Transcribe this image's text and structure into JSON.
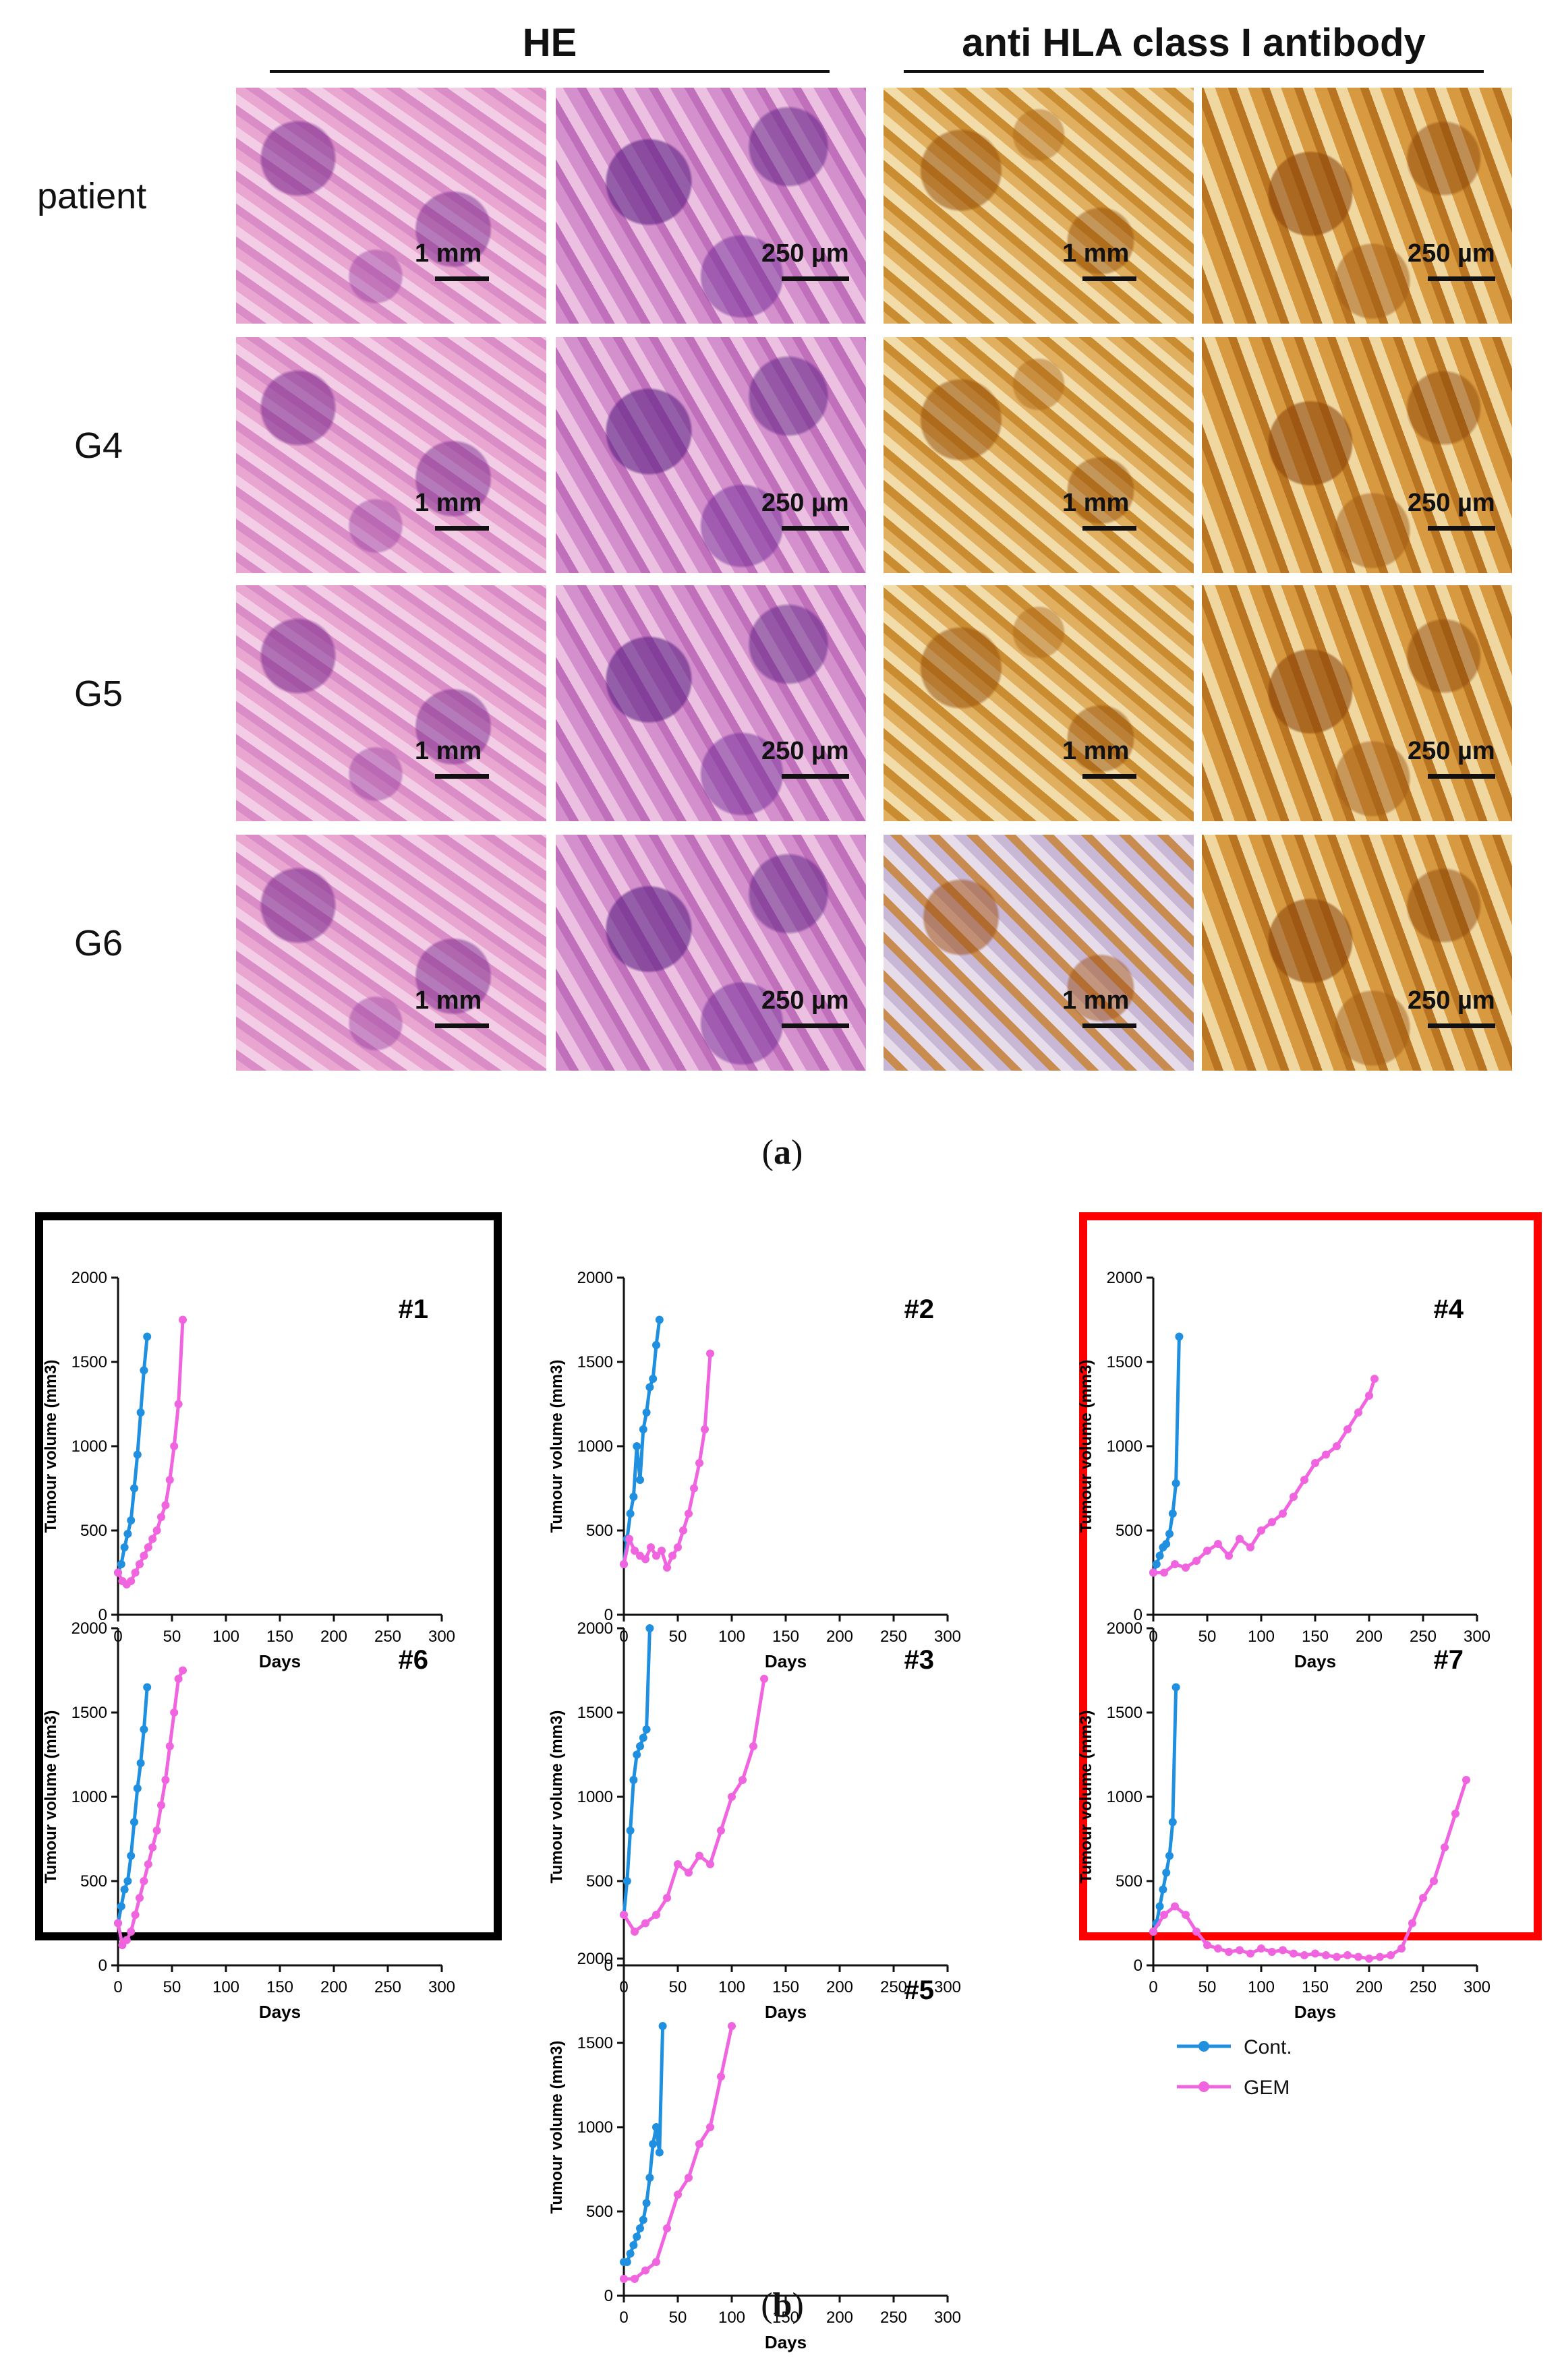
{
  "panel_a": {
    "headers": {
      "he": "HE",
      "hla": "anti HLA class I antibody"
    },
    "rows": [
      {
        "label": "patient",
        "scales": [
          "1 mm",
          "250 µm",
          "1 mm",
          "250 µm"
        ]
      },
      {
        "label": "G4",
        "scales": [
          "1 mm",
          "250 µm",
          "1 mm",
          "250 µm"
        ]
      },
      {
        "label": "G5",
        "scales": [
          "1 mm",
          "250 µm",
          "1 mm",
          "250 µm"
        ]
      },
      {
        "label": "G6",
        "scales": [
          "1 mm",
          "250 µm",
          "1 mm",
          "250 µm"
        ]
      }
    ],
    "caption": {
      "open": "(",
      "letter": "a",
      "close": ")"
    }
  },
  "panel_b": {
    "caption": {
      "open": "(",
      "letter": "b",
      "close": ")"
    },
    "frame_colors": {
      "left": "#000000",
      "right": "#ff0000"
    }
  },
  "legend": [
    {
      "name": "Cont.",
      "color": "#1f8fe0"
    },
    {
      "name": "GEM",
      "color": "#f064e0"
    }
  ],
  "chart_data": [
    {
      "type": "line",
      "id": "#1",
      "xlabel": "Days",
      "ylabel": "Tumour volume (mm3)",
      "xlim": [
        0,
        300
      ],
      "ylim": [
        0,
        2000
      ],
      "xticks": [
        0,
        50,
        100,
        150,
        200,
        250,
        300
      ],
      "yticks": [
        0,
        500,
        1000,
        1500,
        2000
      ],
      "series": [
        {
          "name": "Cont.",
          "x": [
            0,
            3,
            6,
            9,
            12,
            15,
            18,
            21,
            24,
            27
          ],
          "y": [
            250,
            300,
            400,
            480,
            560,
            750,
            950,
            1200,
            1450,
            1650
          ]
        },
        {
          "name": "GEM",
          "x": [
            0,
            4,
            8,
            12,
            16,
            20,
            24,
            28,
            32,
            36,
            40,
            44,
            48,
            52,
            56,
            60
          ],
          "y": [
            250,
            200,
            180,
            200,
            250,
            300,
            350,
            400,
            450,
            500,
            580,
            650,
            800,
            1000,
            1250,
            1750
          ]
        }
      ]
    },
    {
      "type": "line",
      "id": "#2",
      "xlabel": "Days",
      "ylabel": "Tumour volume (mm3)",
      "xlim": [
        0,
        300
      ],
      "ylim": [
        0,
        2000
      ],
      "xticks": [
        0,
        50,
        100,
        150,
        200,
        250,
        300
      ],
      "yticks": [
        0,
        500,
        1000,
        1500,
        2000
      ],
      "series": [
        {
          "name": "Cont.",
          "x": [
            0,
            3,
            6,
            9,
            12,
            15,
            18,
            21,
            24,
            27,
            30,
            33
          ],
          "y": [
            300,
            450,
            600,
            700,
            1000,
            800,
            1100,
            1200,
            1350,
            1400,
            1600,
            1750
          ]
        },
        {
          "name": "GEM",
          "x": [
            0,
            5,
            10,
            15,
            20,
            25,
            30,
            35,
            40,
            45,
            50,
            55,
            60,
            65,
            70,
            75,
            80
          ],
          "y": [
            300,
            450,
            380,
            350,
            330,
            400,
            350,
            380,
            280,
            350,
            400,
            500,
            600,
            750,
            900,
            1100,
            1550
          ]
        }
      ]
    },
    {
      "type": "line",
      "id": "#4",
      "xlabel": "Days",
      "ylabel": "Tumour volume (mm3)",
      "xlim": [
        0,
        300
      ],
      "ylim": [
        0,
        2000
      ],
      "xticks": [
        0,
        50,
        100,
        150,
        200,
        250,
        300
      ],
      "yticks": [
        0,
        500,
        1000,
        1500,
        2000
      ],
      "series": [
        {
          "name": "Cont.",
          "x": [
            0,
            3,
            6,
            9,
            12,
            15,
            18,
            21,
            24
          ],
          "y": [
            250,
            300,
            350,
            400,
            420,
            480,
            600,
            780,
            1650
          ]
        },
        {
          "name": "GEM",
          "x": [
            0,
            10,
            20,
            30,
            40,
            50,
            60,
            70,
            80,
            90,
            100,
            110,
            120,
            130,
            140,
            150,
            160,
            170,
            180,
            190,
            200,
            205
          ],
          "y": [
            250,
            250,
            300,
            280,
            320,
            380,
            420,
            350,
            450,
            400,
            500,
            550,
            600,
            700,
            800,
            900,
            950,
            1000,
            1100,
            1200,
            1300,
            1400
          ]
        }
      ]
    },
    {
      "type": "line",
      "id": "#6",
      "xlabel": "Days",
      "ylabel": "Tumour volume (mm3)",
      "xlim": [
        0,
        300
      ],
      "ylim": [
        0,
        2000
      ],
      "xticks": [
        0,
        50,
        100,
        150,
        200,
        250,
        300
      ],
      "yticks": [
        0,
        500,
        1000,
        1500,
        2000
      ],
      "series": [
        {
          "name": "Cont.",
          "x": [
            0,
            3,
            6,
            9,
            12,
            15,
            18,
            21,
            24,
            27
          ],
          "y": [
            250,
            350,
            450,
            500,
            650,
            850,
            1050,
            1200,
            1400,
            1650
          ]
        },
        {
          "name": "GEM",
          "x": [
            0,
            4,
            8,
            12,
            16,
            20,
            24,
            28,
            32,
            36,
            40,
            44,
            48,
            52,
            56,
            60
          ],
          "y": [
            250,
            120,
            150,
            200,
            300,
            400,
            500,
            600,
            700,
            800,
            950,
            1100,
            1300,
            1500,
            1700,
            1750
          ]
        }
      ]
    },
    {
      "type": "line",
      "id": "#3",
      "xlabel": "Days",
      "ylabel": "Tumour volume (mm3)",
      "xlim": [
        0,
        300
      ],
      "ylim": [
        0,
        2000
      ],
      "xticks": [
        0,
        50,
        100,
        150,
        200,
        250,
        300
      ],
      "yticks": [
        0,
        500,
        1000,
        1500,
        2000
      ],
      "series": [
        {
          "name": "Cont.",
          "x": [
            0,
            3,
            6,
            9,
            12,
            15,
            18,
            21,
            24
          ],
          "y": [
            300,
            500,
            800,
            1100,
            1250,
            1300,
            1350,
            1400,
            2000
          ]
        },
        {
          "name": "GEM",
          "x": [
            0,
            10,
            20,
            30,
            40,
            50,
            60,
            70,
            80,
            90,
            100,
            110,
            120,
            130
          ],
          "y": [
            300,
            200,
            250,
            300,
            400,
            600,
            550,
            650,
            600,
            800,
            1000,
            1100,
            1300,
            1700
          ]
        }
      ]
    },
    {
      "type": "line",
      "id": "#7",
      "xlabel": "Days",
      "ylabel": "Tumour volume (mm3)",
      "xlim": [
        0,
        300
      ],
      "ylim": [
        0,
        2000
      ],
      "xticks": [
        0,
        50,
        100,
        150,
        200,
        250,
        300
      ],
      "yticks": [
        0,
        500,
        1000,
        1500,
        2000
      ],
      "series": [
        {
          "name": "Cont.",
          "x": [
            0,
            3,
            6,
            9,
            12,
            15,
            18,
            21
          ],
          "y": [
            200,
            250,
            350,
            450,
            550,
            650,
            850,
            1650
          ]
        },
        {
          "name": "GEM",
          "x": [
            0,
            10,
            20,
            30,
            40,
            50,
            60,
            70,
            80,
            90,
            100,
            110,
            120,
            130,
            140,
            150,
            160,
            170,
            180,
            190,
            200,
            210,
            220,
            230,
            240,
            250,
            260,
            270,
            280,
            290
          ],
          "y": [
            200,
            300,
            350,
            300,
            200,
            120,
            100,
            80,
            90,
            70,
            100,
            80,
            90,
            70,
            60,
            70,
            60,
            50,
            60,
            50,
            40,
            50,
            60,
            100,
            250,
            400,
            500,
            700,
            900,
            1100
          ]
        }
      ]
    },
    {
      "type": "line",
      "id": "#5",
      "xlabel": "Days",
      "ylabel": "Tumour volume (mm3)",
      "xlim": [
        0,
        300
      ],
      "ylim": [
        0,
        2000
      ],
      "xticks": [
        0,
        50,
        100,
        150,
        200,
        250,
        300
      ],
      "yticks": [
        0,
        500,
        1000,
        1500,
        2000
      ],
      "series": [
        {
          "name": "Cont.",
          "x": [
            0,
            3,
            6,
            9,
            12,
            15,
            18,
            21,
            24,
            27,
            30,
            33,
            36
          ],
          "y": [
            200,
            200,
            250,
            300,
            350,
            400,
            450,
            550,
            700,
            900,
            1000,
            850,
            1600
          ]
        },
        {
          "name": "GEM",
          "x": [
            0,
            10,
            20,
            30,
            40,
            50,
            60,
            70,
            80,
            90,
            100
          ],
          "y": [
            100,
            100,
            150,
            200,
            400,
            600,
            700,
            900,
            1000,
            1300,
            1600
          ]
        }
      ]
    }
  ]
}
